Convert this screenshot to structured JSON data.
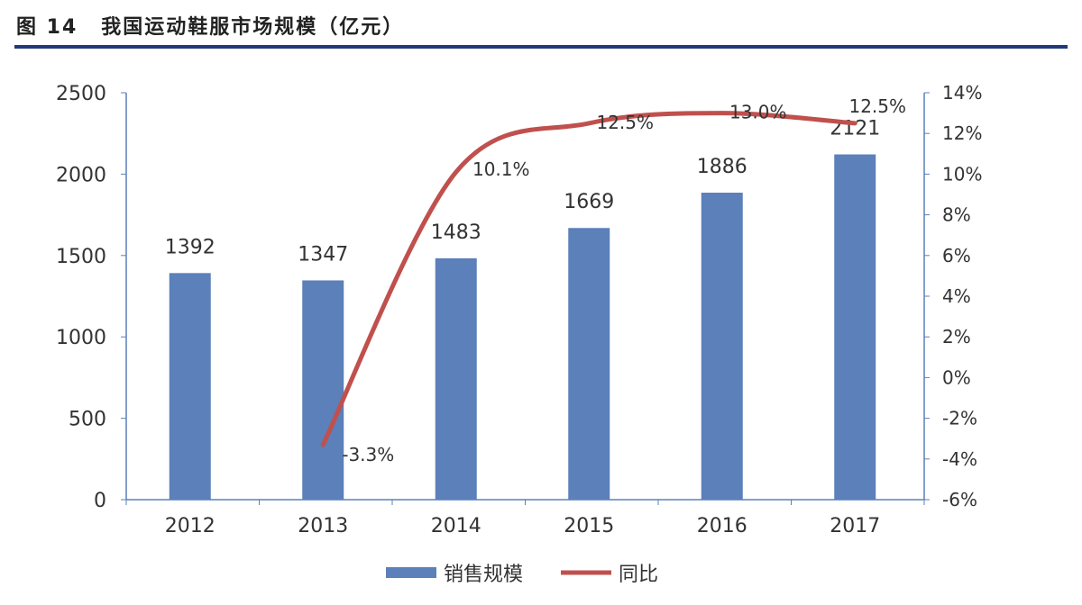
{
  "header": {
    "figure_label": "图 14",
    "title": "我国运动鞋服市场规模（亿元）"
  },
  "colors": {
    "bar": "#5b80ba",
    "line": "#c0504d",
    "axis": "#5b80ba",
    "rule": "#1f3a7a"
  },
  "chart_data": {
    "type": "bar+line",
    "title": "我国运动鞋服市场规模（亿元）",
    "categories": [
      "2012",
      "2013",
      "2014",
      "2015",
      "2016",
      "2017"
    ],
    "series": [
      {
        "name": "销售规模",
        "type": "bar",
        "axis": "left",
        "values": [
          1392,
          1347,
          1483,
          1669,
          1886,
          2121
        ],
        "labels": [
          "1392",
          "1347",
          "1483",
          "1669",
          "1886",
          "2121"
        ]
      },
      {
        "name": "同比",
        "type": "line",
        "axis": "right",
        "values": [
          null,
          -3.3,
          10.1,
          12.5,
          13.0,
          12.5
        ],
        "labels": [
          "",
          "-3.3%",
          "10.1%",
          "12.5%",
          "13.0%",
          "12.5%"
        ]
      }
    ],
    "y_left": {
      "range": [
        0,
        2500
      ],
      "ticks": [
        "0",
        "500",
        "1000",
        "1500",
        "2000",
        "2500"
      ],
      "tick_values": [
        0,
        500,
        1000,
        1500,
        2000,
        2500
      ]
    },
    "y_right": {
      "range": [
        -6,
        14
      ],
      "ticks": [
        "-6%",
        "-4%",
        "-2%",
        "0%",
        "2%",
        "4%",
        "6%",
        "8%",
        "10%",
        "12%",
        "14%"
      ],
      "tick_values": [
        -6,
        -4,
        -2,
        0,
        2,
        4,
        6,
        8,
        10,
        12,
        14
      ]
    },
    "grid": false,
    "legend": {
      "position": "bottom",
      "entries": [
        "销售规模",
        "同比"
      ]
    }
  }
}
